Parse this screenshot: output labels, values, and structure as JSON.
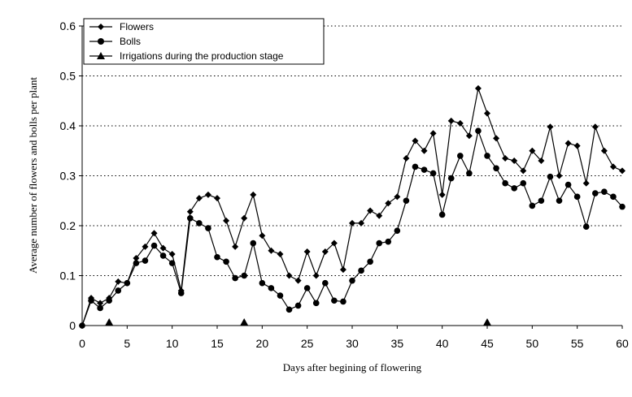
{
  "chart_data": {
    "type": "line",
    "title": "",
    "xlabel": "Days after begining of flowering",
    "ylabel": "Average number of flowers and bolls per plant",
    "xlim": [
      0,
      60
    ],
    "ylim": [
      0,
      0.6
    ],
    "x_ticks": [
      "0",
      "5",
      "10",
      "15",
      "20",
      "25",
      "30",
      "35",
      "40",
      "45",
      "50",
      "55",
      "60"
    ],
    "y_ticks": [
      "0",
      "0.1",
      "0.2",
      "0.3",
      "0.4",
      "0.5",
      "0.6"
    ],
    "grid": "horizontal dotted",
    "legend_position": "top-left",
    "series": [
      {
        "name": "Flowers",
        "marker": "diamond",
        "x": [
          0,
          1,
          2,
          3,
          4,
          5,
          6,
          7,
          8,
          9,
          10,
          11,
          12,
          13,
          14,
          15,
          16,
          17,
          18,
          19,
          20,
          21,
          22,
          23,
          24,
          25,
          26,
          27,
          28,
          29,
          30,
          31,
          32,
          33,
          34,
          35,
          36,
          37,
          38,
          39,
          40,
          41,
          42,
          43,
          44,
          45,
          46,
          47,
          48,
          49,
          50,
          51,
          52,
          53,
          54,
          55,
          56,
          57,
          58,
          59,
          60
        ],
        "values": [
          0,
          0.055,
          0.045,
          0.055,
          0.088,
          0.085,
          0.135,
          0.158,
          0.185,
          0.155,
          0.143,
          0.07,
          0.228,
          0.255,
          0.262,
          0.255,
          0.21,
          0.158,
          0.215,
          0.262,
          0.18,
          0.15,
          0.143,
          0.1,
          0.09,
          0.148,
          0.1,
          0.148,
          0.165,
          0.112,
          0.205,
          0.205,
          0.23,
          0.22,
          0.245,
          0.258,
          0.335,
          0.37,
          0.35,
          0.385,
          0.262,
          0.41,
          0.405,
          0.38,
          0.475,
          0.425,
          0.375,
          0.335,
          0.33,
          0.31,
          0.35,
          0.33,
          0.398,
          0.3,
          0.365,
          0.36,
          0.285,
          0.398,
          0.35,
          0.318,
          0.31
        ]
      },
      {
        "name": "Bolls",
        "marker": "circle",
        "x": [
          0,
          1,
          2,
          3,
          4,
          5,
          6,
          7,
          8,
          9,
          10,
          11,
          12,
          13,
          14,
          15,
          16,
          17,
          18,
          19,
          20,
          21,
          22,
          23,
          24,
          25,
          26,
          27,
          28,
          29,
          30,
          31,
          32,
          33,
          34,
          35,
          36,
          37,
          38,
          39,
          40,
          41,
          42,
          43,
          44,
          45,
          46,
          47,
          48,
          49,
          50,
          51,
          52,
          53,
          54,
          55,
          56,
          57,
          58,
          59,
          60
        ],
        "values": [
          0,
          0.05,
          0.035,
          0.05,
          0.07,
          0.085,
          0.125,
          0.13,
          0.16,
          0.14,
          0.125,
          0.065,
          0.215,
          0.205,
          0.195,
          0.137,
          0.128,
          0.095,
          0.1,
          0.165,
          0.085,
          0.075,
          0.06,
          0.032,
          0.04,
          0.075,
          0.045,
          0.085,
          0.05,
          0.048,
          0.09,
          0.11,
          0.128,
          0.165,
          0.168,
          0.19,
          0.25,
          0.318,
          0.312,
          0.305,
          0.222,
          0.295,
          0.34,
          0.305,
          0.39,
          0.34,
          0.315,
          0.285,
          0.275,
          0.285,
          0.24,
          0.25,
          0.298,
          0.25,
          0.282,
          0.258,
          0.198,
          0.265,
          0.268,
          0.258,
          0.238
        ]
      },
      {
        "name": "Irrigations during the production stage",
        "marker": "triangle",
        "x": [
          3,
          18,
          45
        ],
        "values": [
          0,
          0,
          0
        ]
      }
    ]
  }
}
